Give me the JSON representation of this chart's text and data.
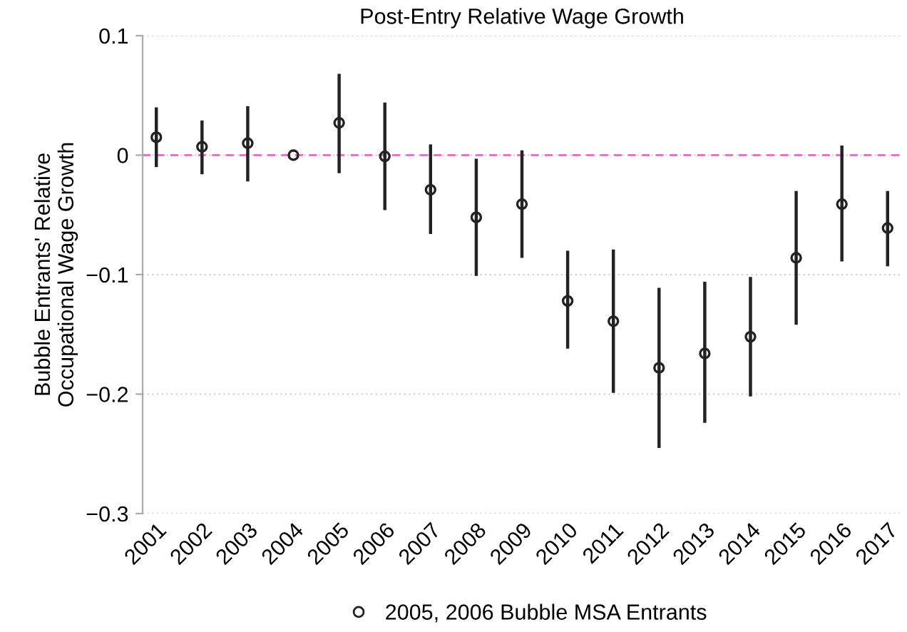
{
  "chart_data": {
    "type": "scatter",
    "title": "Post-Entry Relative Wage Growth",
    "ylabel": "Bubble Entrants' Relative\nOccupational Wage Growth",
    "categories": [
      "2001",
      "2002",
      "2003",
      "2004",
      "2005",
      "2006",
      "2007",
      "2008",
      "2009",
      "2010",
      "2011",
      "2012",
      "2013",
      "2014",
      "2015",
      "2016",
      "2017"
    ],
    "series": [
      {
        "name": "2005, 2006 Bubble MSA Entrants",
        "color": "#222222",
        "values": [
          0.015,
          0.007,
          0.01,
          0,
          0.027,
          -0.001,
          -0.029,
          -0.052,
          -0.041,
          -0.122,
          -0.139,
          -0.178,
          -0.166,
          -0.152,
          -0.086,
          -0.041,
          -0.061
        ],
        "errors": [
          [
            -0.01,
            0.04
          ],
          [
            -0.016,
            0.029
          ],
          [
            -0.022,
            0.041
          ],
          null,
          [
            -0.015,
            0.068
          ],
          [
            -0.046,
            0.044
          ],
          [
            -0.066,
            0.009
          ],
          [
            -0.101,
            -0.003
          ],
          [
            -0.086,
            0.004
          ],
          [
            -0.162,
            -0.08
          ],
          [
            -0.199,
            -0.079
          ],
          [
            -0.245,
            -0.111
          ],
          [
            -0.224,
            -0.106
          ],
          [
            -0.202,
            -0.102
          ],
          [
            -0.142,
            -0.03
          ],
          [
            -0.089,
            0.008
          ],
          [
            -0.093,
            -0.03
          ]
        ]
      }
    ],
    "ylim": [
      -0.3,
      0.1
    ],
    "yticks": [
      {
        "value": -0.3,
        "label": "−0.3"
      },
      {
        "value": -0.2,
        "label": "−0.2"
      },
      {
        "value": -0.1,
        "label": "−0.1"
      },
      0,
      0.1
    ],
    "ref_lines": [
      {
        "axis": "y",
        "value": 0,
        "color": "#e377c2",
        "line_style": "dashed"
      }
    ],
    "grid": "y",
    "legend": "bottom",
    "marker": "circle"
  }
}
